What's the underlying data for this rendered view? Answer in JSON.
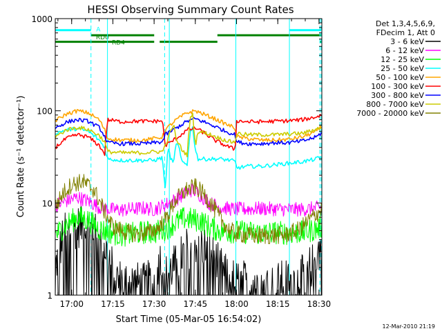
{
  "chart_data": {
    "type": "line",
    "title": "HESSI Observing Summary Count Rates",
    "xlabel": "Start Time (05-Mar-05 16:54:02)",
    "ylabel": "Count Rate (s⁻¹ detector⁻¹)",
    "x_unit": "minutes since 16:54:02",
    "xlim": [
      0,
      97
    ],
    "ylim": [
      1,
      1000
    ],
    "yscale": "log",
    "grid": false,
    "x_ticks": [
      {
        "t": 5.97,
        "label": "17:00"
      },
      {
        "t": 20.97,
        "label": "17:15"
      },
      {
        "t": 35.97,
        "label": "17:30"
      },
      {
        "t": 50.97,
        "label": "17:45"
      },
      {
        "t": 65.97,
        "label": "18:00"
      },
      {
        "t": 80.97,
        "label": "18:15"
      },
      {
        "t": 95.97,
        "label": "18:30"
      }
    ],
    "y_ticks": [
      {
        "v": 1,
        "label": "1"
      },
      {
        "v": 10,
        "label": "10"
      },
      {
        "v": 100,
        "label": "100"
      },
      {
        "v": 1000,
        "label": "1000"
      }
    ],
    "legend": {
      "placement": "right",
      "header": [
        "Det 1,3,4,5,6,9,",
        "FDecim 1, Att 0"
      ]
    },
    "series": [
      {
        "name": "3 - 6 keV",
        "color": "#000000",
        "points": [
          [
            0,
            2
          ],
          [
            3,
            4.5
          ],
          [
            6,
            5.2
          ],
          [
            10,
            5.8
          ],
          [
            14,
            4.8
          ],
          [
            18,
            3.3
          ],
          [
            20,
            2.4
          ],
          [
            22,
            1.5
          ],
          [
            27,
            1.4
          ],
          [
            32,
            1.3
          ],
          [
            36,
            1.5
          ],
          [
            38,
            2.5
          ],
          [
            40,
            1.6
          ],
          [
            44,
            2.2
          ],
          [
            48,
            3.2
          ],
          [
            52,
            3.8
          ],
          [
            56,
            3.0
          ],
          [
            60,
            2.0
          ],
          [
            63,
            1.5
          ],
          [
            68,
            1.4
          ],
          [
            75,
            1.5
          ],
          [
            80,
            1.3
          ],
          [
            85,
            1.5
          ],
          [
            90,
            1.6
          ],
          [
            94,
            2.2
          ],
          [
            97,
            3.6
          ]
        ]
      },
      {
        "name": "6 - 12 keV",
        "color": "#ff00ff",
        "points": [
          [
            0,
            9.5
          ],
          [
            4,
            10.5
          ],
          [
            8,
            11.5
          ],
          [
            12,
            10.5
          ],
          [
            16,
            9
          ],
          [
            20,
            8.5
          ],
          [
            24,
            8.4
          ],
          [
            28,
            8.6
          ],
          [
            32,
            8.8
          ],
          [
            36,
            8.5
          ],
          [
            40,
            9.5
          ],
          [
            44,
            11
          ],
          [
            47,
            12.5
          ],
          [
            50,
            14
          ],
          [
            53,
            12
          ],
          [
            56,
            10
          ],
          [
            60,
            9
          ],
          [
            64,
            8.6
          ],
          [
            70,
            8.6
          ],
          [
            75,
            8.7
          ],
          [
            80,
            8.6
          ],
          [
            85,
            8.5
          ],
          [
            90,
            8.5
          ],
          [
            95,
            8.8
          ],
          [
            97,
            9
          ]
        ]
      },
      {
        "name": "12 - 25 keV",
        "color": "#00ff00",
        "points": [
          [
            0,
            4.5
          ],
          [
            4,
            5.8
          ],
          [
            8,
            7
          ],
          [
            12,
            6.5
          ],
          [
            16,
            5.2
          ],
          [
            20,
            4.8
          ],
          [
            24,
            4.5
          ],
          [
            28,
            4.6
          ],
          [
            32,
            4.8
          ],
          [
            36,
            4.8
          ],
          [
            40,
            5.2
          ],
          [
            44,
            6.2
          ],
          [
            47,
            6.8
          ],
          [
            50,
            6.6
          ],
          [
            53,
            6.4
          ],
          [
            56,
            5.5
          ],
          [
            60,
            5
          ],
          [
            64,
            4.9
          ],
          [
            70,
            4.8
          ],
          [
            75,
            4.7
          ],
          [
            80,
            4.8
          ],
          [
            85,
            4.7
          ],
          [
            90,
            4.8
          ],
          [
            95,
            5.2
          ],
          [
            97,
            5.5
          ]
        ]
      },
      {
        "name": "25 - 50 keV",
        "color": "#00ffff",
        "points": [
          [
            0,
            57
          ],
          [
            4,
            62
          ],
          [
            8,
            64
          ],
          [
            12,
            60
          ],
          [
            16,
            48
          ],
          [
            18,
            40
          ],
          [
            19,
            30
          ],
          [
            24,
            29
          ],
          [
            28,
            29
          ],
          [
            32,
            29
          ],
          [
            36,
            29
          ],
          [
            39,
            31
          ],
          [
            40,
            14
          ],
          [
            41,
            40
          ],
          [
            42,
            31
          ],
          [
            43,
            26
          ],
          [
            44,
            45
          ],
          [
            45,
            40
          ],
          [
            46,
            28
          ],
          [
            48,
            26
          ],
          [
            49,
            58
          ],
          [
            50,
            65
          ],
          [
            51,
            38
          ],
          [
            52,
            30
          ],
          [
            56,
            30
          ],
          [
            60,
            30
          ],
          [
            64,
            29
          ],
          [
            65.5,
            28
          ],
          [
            66,
            24
          ],
          [
            70,
            25
          ],
          [
            75,
            25
          ],
          [
            80,
            26
          ],
          [
            85,
            27
          ],
          [
            90,
            28
          ],
          [
            95,
            30
          ],
          [
            97,
            32
          ]
        ]
      },
      {
        "name": "50 - 100 keV",
        "color": "#ffa500",
        "points": [
          [
            0,
            78
          ],
          [
            4,
            92
          ],
          [
            8,
            100
          ],
          [
            12,
            95
          ],
          [
            16,
            80
          ],
          [
            18,
            62
          ],
          [
            19,
            50
          ],
          [
            24,
            48
          ],
          [
            28,
            48
          ],
          [
            32,
            48
          ],
          [
            36,
            50
          ],
          [
            39,
            52
          ],
          [
            40,
            62
          ],
          [
            44,
            80
          ],
          [
            48,
            95
          ],
          [
            51,
            100
          ],
          [
            54,
            92
          ],
          [
            58,
            82
          ],
          [
            62,
            72
          ],
          [
            65.5,
            65
          ],
          [
            66,
            52
          ],
          [
            70,
            50
          ],
          [
            75,
            48
          ],
          [
            80,
            48
          ],
          [
            85,
            49
          ],
          [
            90,
            52
          ],
          [
            95,
            60
          ],
          [
            97,
            68
          ]
        ]
      },
      {
        "name": "100 - 300 keV",
        "color": "#ff0000",
        "points": [
          [
            0,
            40
          ],
          [
            4,
            50
          ],
          [
            8,
            55
          ],
          [
            12,
            52
          ],
          [
            16,
            42
          ],
          [
            18,
            34
          ],
          [
            19,
            80
          ],
          [
            24,
            76
          ],
          [
            28,
            77
          ],
          [
            32,
            77
          ],
          [
            36,
            77
          ],
          [
            39,
            78
          ],
          [
            40,
            42
          ],
          [
            44,
            50
          ],
          [
            48,
            62
          ],
          [
            51,
            65
          ],
          [
            54,
            58
          ],
          [
            58,
            48
          ],
          [
            62,
            42
          ],
          [
            65.5,
            38
          ],
          [
            66,
            78
          ],
          [
            70,
            76
          ],
          [
            75,
            76
          ],
          [
            80,
            77
          ],
          [
            85,
            78
          ],
          [
            90,
            80
          ],
          [
            95,
            86
          ],
          [
            97,
            90
          ]
        ]
      },
      {
        "name": "300 - 800 keV",
        "color": "#0000ff",
        "points": [
          [
            0,
            65
          ],
          [
            4,
            75
          ],
          [
            8,
            80
          ],
          [
            12,
            77
          ],
          [
            16,
            66
          ],
          [
            18,
            53
          ],
          [
            19,
            45
          ],
          [
            24,
            44
          ],
          [
            28,
            44
          ],
          [
            32,
            44
          ],
          [
            36,
            45
          ],
          [
            39,
            46
          ],
          [
            40,
            55
          ],
          [
            44,
            65
          ],
          [
            48,
            77
          ],
          [
            51,
            82
          ],
          [
            54,
            76
          ],
          [
            58,
            68
          ],
          [
            62,
            60
          ],
          [
            65.5,
            55
          ],
          [
            66,
            46
          ],
          [
            70,
            44
          ],
          [
            75,
            44
          ],
          [
            80,
            45
          ],
          [
            85,
            45
          ],
          [
            90,
            47
          ],
          [
            95,
            52
          ],
          [
            97,
            58
          ]
        ]
      },
      {
        "name": "800 - 7000 keV",
        "color": "#cccc00",
        "points": [
          [
            0,
            52
          ],
          [
            4,
            62
          ],
          [
            8,
            66
          ],
          [
            12,
            63
          ],
          [
            16,
            54
          ],
          [
            18,
            46
          ],
          [
            19,
            36
          ],
          [
            24,
            35
          ],
          [
            28,
            35
          ],
          [
            32,
            35
          ],
          [
            36,
            36
          ],
          [
            39,
            36
          ],
          [
            40,
            42
          ],
          [
            43,
            72
          ],
          [
            44,
            48
          ],
          [
            45,
            44
          ],
          [
            46,
            38
          ],
          [
            48,
            33
          ],
          [
            49,
            82
          ],
          [
            50,
            90
          ],
          [
            51,
            42
          ],
          [
            52,
            60
          ],
          [
            56,
            56
          ],
          [
            60,
            50
          ],
          [
            64,
            46
          ],
          [
            65.5,
            46
          ],
          [
            66,
            57
          ],
          [
            70,
            55
          ],
          [
            75,
            55
          ],
          [
            80,
            55
          ],
          [
            85,
            56
          ],
          [
            90,
            57
          ],
          [
            95,
            63
          ],
          [
            97,
            67
          ]
        ]
      },
      {
        "name": "7000 - 20000 keV",
        "color": "#808000",
        "points": [
          [
            0,
            9
          ],
          [
            3,
            13
          ],
          [
            6,
            16
          ],
          [
            10,
            17
          ],
          [
            14,
            14
          ],
          [
            18,
            8
          ],
          [
            21,
            5.5
          ],
          [
            26,
            4.8
          ],
          [
            30,
            4.6
          ],
          [
            34,
            4.8
          ],
          [
            37,
            5.2
          ],
          [
            40,
            6.5
          ],
          [
            44,
            11
          ],
          [
            48,
            14
          ],
          [
            51,
            15
          ],
          [
            54,
            12.5
          ],
          [
            57,
            9.5
          ],
          [
            60,
            6.8
          ],
          [
            63,
            5.2
          ],
          [
            66,
            4.6
          ],
          [
            72,
            4.4
          ],
          [
            78,
            4.4
          ],
          [
            84,
            4.5
          ],
          [
            89,
            5.2
          ],
          [
            93,
            6.8
          ],
          [
            97,
            8.5
          ]
        ]
      }
    ],
    "attenuator_bars": [
      {
        "name": "A",
        "color": "#00ffff",
        "level": 750,
        "segments": [
          [
            0,
            13
          ],
          [
            85.2,
            96.8
          ]
        ]
      },
      {
        "name": "RD0",
        "color": "#008000",
        "level": 660,
        "segments": [
          [
            13,
            36
          ],
          [
            59,
            96.8
          ]
        ]
      },
      {
        "name": "RD4",
        "color": "#008000",
        "level": 560,
        "segments": [
          [
            0,
            36
          ],
          [
            38,
            59
          ],
          [
            96.3,
            96.8
          ]
        ]
      }
    ],
    "bar_labels": [
      {
        "text": "A",
        "t": 14.9,
        "level": 780
      },
      {
        "text": "RD0",
        "t": 14.8,
        "level": 640
      },
      {
        "text": "RD4",
        "t": 20.6,
        "level": 560
      }
    ],
    "vertical_lines": [
      {
        "t": 0,
        "style": "solid"
      },
      {
        "t": 13,
        "style": "dashed"
      },
      {
        "t": 19,
        "style": "solid"
      },
      {
        "t": 39.8,
        "style": "dashed"
      },
      {
        "t": 41.5,
        "style": "solid"
      },
      {
        "t": 65.7,
        "style": "solid"
      },
      {
        "t": 85.2,
        "style": "solid"
      },
      {
        "t": 96.3,
        "style": "dashed"
      },
      {
        "t": 96.8,
        "style": "dashed"
      }
    ],
    "vertical_line_color": "#00ffff",
    "footer": "12-Mar-2010 21:19"
  }
}
